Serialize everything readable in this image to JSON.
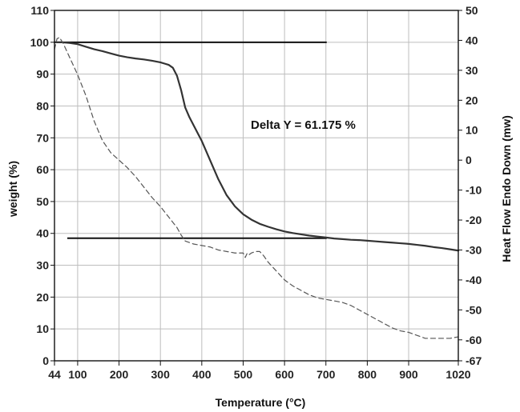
{
  "chart_data": {
    "type": "line",
    "xlabel": "Temperature (°C)",
    "ylabel_left": "weight (%)",
    "ylabel_right": "Heat Flow Endo Down (mw)",
    "x_ticks": [
      44,
      100,
      200,
      300,
      400,
      500,
      600,
      700,
      800,
      900,
      1020
    ],
    "y_left_ticks": [
      0,
      10,
      20,
      30,
      40,
      50,
      60,
      70,
      80,
      90,
      100,
      110
    ],
    "y_right_ticks": [
      -67,
      -60,
      -50,
      -40,
      -30,
      -20,
      -10,
      0,
      10,
      20,
      30,
      40,
      50
    ],
    "xlim": [
      44,
      1020
    ],
    "ylim_left": [
      0,
      110
    ],
    "ylim_right": [
      -67,
      50
    ],
    "grid": true,
    "annotation": "Delta Y = 61.175 %",
    "reference_lines": [
      {
        "axis": "left",
        "y": 100,
        "x_start": 44,
        "x_end": 702
      },
      {
        "axis": "left",
        "y": 38.5,
        "x_start": 75,
        "x_end": 702
      }
    ],
    "series": [
      {
        "axis": "left",
        "style": "solid",
        "color": "#333333",
        "x": [
          44,
          60,
          80,
          100,
          120,
          140,
          160,
          180,
          200,
          220,
          240,
          260,
          280,
          300,
          310,
          320,
          330,
          340,
          350,
          360,
          370,
          380,
          400,
          420,
          440,
          460,
          480,
          500,
          520,
          540,
          560,
          580,
          600,
          620,
          640,
          660,
          680,
          700,
          720,
          740,
          760,
          780,
          800,
          820,
          840,
          860,
          880,
          900,
          920,
          940,
          960,
          980,
          1000,
          1020
        ],
        "values": [
          100,
          100,
          99.8,
          99.4,
          98.6,
          97.8,
          97.2,
          96.5,
          95.8,
          95.3,
          94.9,
          94.6,
          94.2,
          93.7,
          93.3,
          92.9,
          92,
          89.5,
          85,
          79.5,
          76.5,
          74,
          69,
          63,
          57,
          52,
          48.5,
          46,
          44.3,
          43,
          42.1,
          41.3,
          40.6,
          40.1,
          39.7,
          39.3,
          39,
          38.7,
          38.4,
          38.2,
          38,
          37.9,
          37.7,
          37.5,
          37.3,
          37.1,
          36.9,
          36.7,
          36.4,
          36.1,
          35.7,
          35.4,
          35,
          34.6
        ]
      },
      {
        "axis": "right",
        "style": "dashed",
        "color": "#555555",
        "x": [
          44,
          50,
          56,
          65,
          75,
          85,
          100,
          120,
          140,
          160,
          180,
          200,
          220,
          240,
          260,
          280,
          300,
          320,
          340,
          350,
          360,
          380,
          400,
          420,
          440,
          460,
          480,
          500,
          505,
          510,
          515,
          520,
          530,
          540,
          550,
          560,
          580,
          600,
          620,
          640,
          660,
          680,
          700,
          720,
          740,
          760,
          780,
          800,
          820,
          840,
          860,
          880,
          900,
          920,
          940,
          960,
          980,
          1000,
          1020
        ],
        "values": [
          37,
          40.5,
          41,
          39,
          36,
          33,
          28.5,
          21.5,
          13,
          6.5,
          2.5,
          0,
          -2.5,
          -5.5,
          -9,
          -12.5,
          -15.5,
          -19,
          -22.5,
          -25,
          -27,
          -28,
          -28.5,
          -29,
          -30,
          -30.5,
          -31,
          -31,
          -32.5,
          -31,
          -31.5,
          -31,
          -30.5,
          -30.5,
          -32,
          -34,
          -37,
          -40,
          -42,
          -43.5,
          -45,
          -46,
          -46.5,
          -47,
          -47.5,
          -48.5,
          -50,
          -51.5,
          -53,
          -54.5,
          -56,
          -57,
          -57.5,
          -58.5,
          -59.5,
          -59.5,
          -59.5,
          -59.5,
          -59
        ]
      }
    ]
  }
}
